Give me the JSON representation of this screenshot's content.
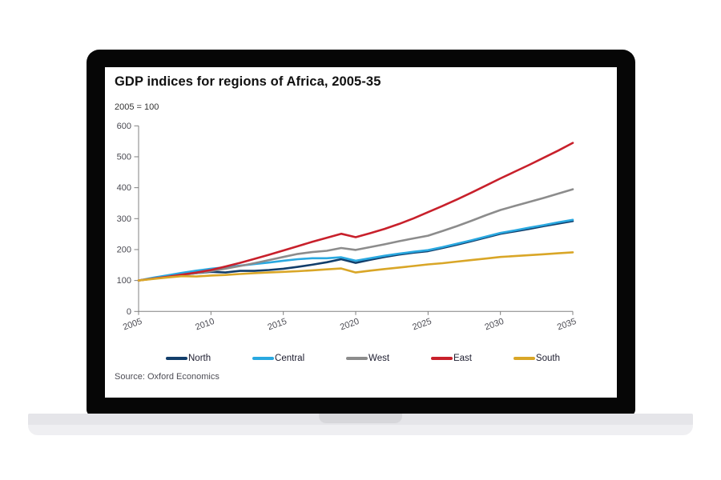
{
  "chart": {
    "title": "GDP indices for regions of Africa, 2005-35",
    "subtitle": "2005 = 100",
    "source": "Source: Oxford Economics"
  },
  "chart_data": {
    "type": "line",
    "title": "GDP indices for regions of Africa, 2005-35",
    "subtitle": "2005 = 100",
    "source": "Source: Oxford Economics",
    "xlabel": "",
    "ylabel": "",
    "ylim": [
      0,
      600
    ],
    "yticks": [
      0,
      100,
      200,
      300,
      400,
      500,
      600
    ],
    "xticks": [
      2005,
      2010,
      2015,
      2020,
      2025,
      2030,
      2035
    ],
    "grid": false,
    "legend_position": "bottom",
    "x": [
      2005,
      2006,
      2007,
      2008,
      2009,
      2010,
      2011,
      2012,
      2013,
      2014,
      2015,
      2016,
      2017,
      2018,
      2019,
      2020,
      2021,
      2022,
      2023,
      2024,
      2025,
      2026,
      2027,
      2028,
      2029,
      2030,
      2031,
      2032,
      2033,
      2034,
      2035
    ],
    "series": [
      {
        "name": "North",
        "color": "#123e6b",
        "values": [
          100,
          107,
          113,
          119,
          124,
          128,
          126,
          131,
          131,
          134,
          138,
          144,
          151,
          159,
          169,
          157,
          167,
          176,
          184,
          190,
          195,
          205,
          216,
          227,
          239,
          251,
          259,
          267,
          276,
          284,
          292
        ]
      },
      {
        "name": "Central",
        "color": "#29a8e0",
        "values": [
          100,
          109,
          117,
          125,
          132,
          138,
          143,
          148,
          153,
          158,
          164,
          169,
          172,
          172,
          175,
          164,
          172,
          180,
          187,
          193,
          198,
          208,
          219,
          230,
          242,
          254,
          262,
          271,
          279,
          288,
          296
        ]
      },
      {
        "name": "West",
        "color": "#8c8c8c",
        "values": [
          100,
          106,
          112,
          118,
          124,
          130,
          138,
          147,
          156,
          166,
          176,
          186,
          192,
          196,
          205,
          199,
          208,
          217,
          227,
          236,
          245,
          260,
          276,
          293,
          311,
          328,
          341,
          354,
          367,
          381,
          395
        ]
      },
      {
        "name": "East",
        "color": "#c8202b",
        "values": [
          100,
          106,
          112,
          119,
          126,
          134,
          145,
          157,
          170,
          183,
          197,
          211,
          225,
          238,
          251,
          240,
          253,
          267,
          283,
          301,
          321,
          341,
          362,
          384,
          407,
          430,
          452,
          474,
          497,
          520,
          545
        ]
      },
      {
        "name": "South",
        "color": "#d9a627",
        "values": [
          100,
          105,
          110,
          114,
          113,
          116,
          118,
          121,
          124,
          126,
          128,
          130,
          133,
          136,
          139,
          126,
          132,
          137,
          142,
          147,
          152,
          156,
          161,
          166,
          171,
          176,
          179,
          182,
          185,
          188,
          191
        ]
      }
    ],
    "axis_color": "#808080",
    "tick_label_color": "#4a4a52"
  }
}
